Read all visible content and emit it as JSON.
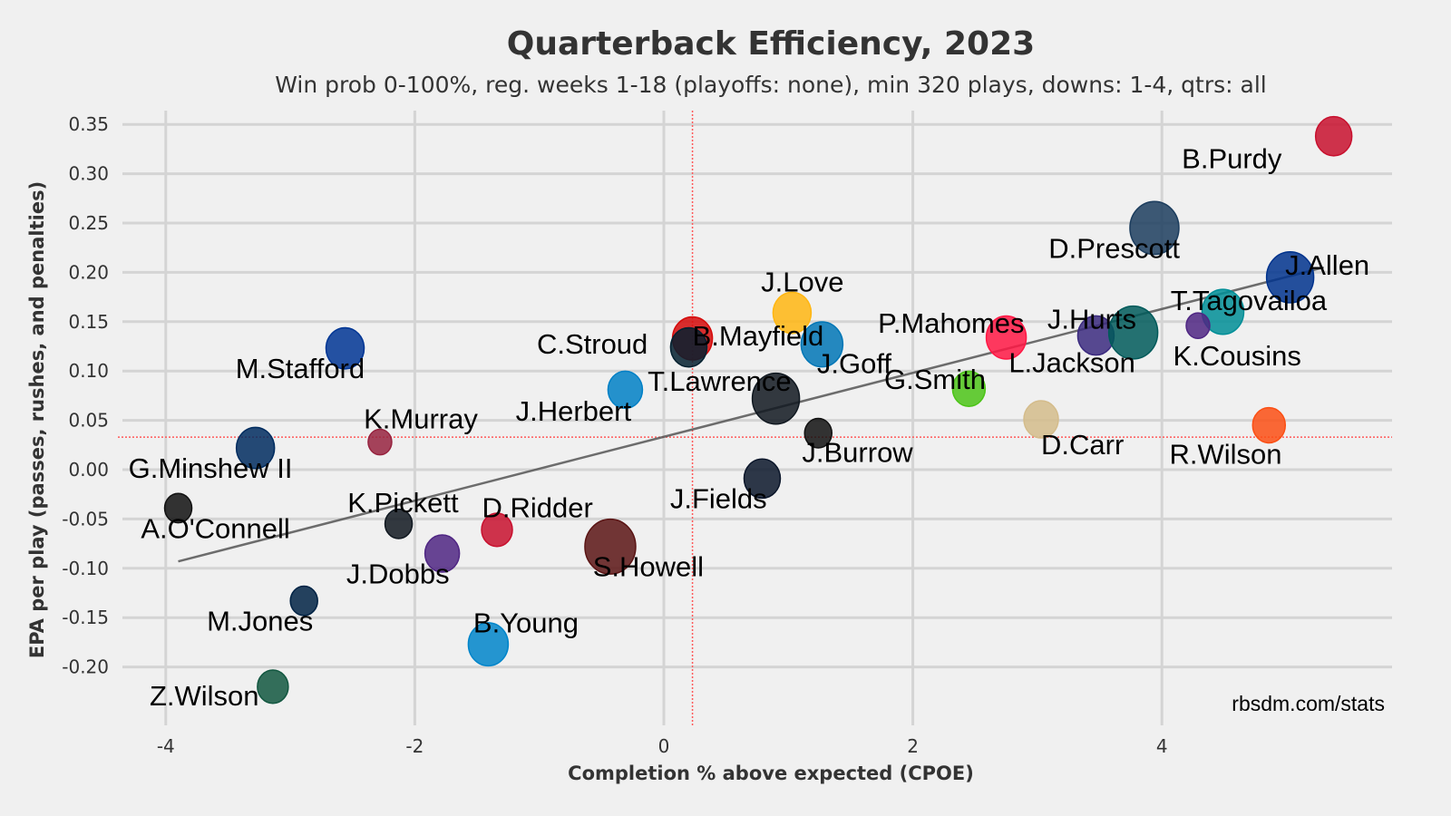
{
  "chart_data": {
    "type": "scatter",
    "title": "Quarterback Efficiency, 2023",
    "subtitle": "Win prob 0-100%, reg. weeks 1-18 (playoffs: none), min 320 plays, downs: 1-4, qtrs: all",
    "xlabel": "Completion % above expected (CPOE)",
    "ylabel": "EPA per play (passes, rushes, and penalties)",
    "credit": "rbsdm.com/stats",
    "xlim": [
      -4.45,
      5.8
    ],
    "ylim": [
      -0.245,
      0.365
    ],
    "xticks": [
      -4,
      -2,
      0,
      2,
      4
    ],
    "xtick_labels": [
      "-4",
      "-2",
      "0",
      "2",
      "4"
    ],
    "yticks": [
      0.35,
      0.3,
      0.25,
      0.2,
      0.15,
      0.1,
      0.05,
      0.0,
      -0.05,
      -0.1,
      -0.15,
      -0.2
    ],
    "ytick_labels": [
      "0.35",
      "0.30",
      "0.25",
      "0.20",
      "0.15",
      "0.10",
      "0.05",
      "0.00",
      "-0.05",
      "-0.10",
      "-0.15",
      "-0.20"
    ],
    "grid": true,
    "mean_lines": {
      "cpoe": 0.23,
      "epa": 0.033,
      "color": "#ff5a5a"
    },
    "trend_line": {
      "x": [
        -3.9,
        5.3
      ],
      "y": [
        -0.093,
        0.205
      ],
      "color": "#555555"
    },
    "points": [
      {
        "name": "B.Purdy",
        "cpoe": 5.38,
        "epa": 0.338,
        "size": 1.0,
        "color": "#c8102e",
        "label_dx": -1.22,
        "label_dy": -0.023
      },
      {
        "name": "D.Prescott",
        "cpoe": 3.94,
        "epa": 0.245,
        "size": 1.35,
        "color": "#1c3d5e",
        "label_dx": -0.85,
        "label_dy": -0.021
      },
      {
        "name": "J.Allen",
        "cpoe": 5.03,
        "epa": 0.195,
        "size": 1.3,
        "color": "#00338d",
        "label_dx": -0.04,
        "label_dy": 0.012
      },
      {
        "name": "T.Tagovailoa",
        "cpoe": 4.49,
        "epa": 0.16,
        "size": 1.15,
        "color": "#008e97",
        "label_dx": -0.42,
        "label_dy": 0.011
      },
      {
        "name": "K.Cousins",
        "cpoe": 4.29,
        "epa": 0.146,
        "size": 0.65,
        "color": "#4f2683",
        "label_dx": -0.2,
        "label_dy": -0.031
      },
      {
        "name": "J.Hurts",
        "cpoe": 3.47,
        "epa": 0.136,
        "size": 1.0,
        "color": "#3b2a7f",
        "label_dx": -0.39,
        "label_dy": 0.016
      },
      {
        "name": "L.Jackson",
        "cpoe": 3.77,
        "epa": 0.139,
        "size": 1.35,
        "color": "#005a5a",
        "label_dx": -1.0,
        "label_dy": -0.031
      },
      {
        "name": "P.Mahomes",
        "cpoe": 2.75,
        "epa": 0.134,
        "size": 1.1,
        "color": "#ff1744",
        "label_dx": -1.03,
        "label_dy": 0.014
      },
      {
        "name": "G.Smith",
        "cpoe": 2.45,
        "epa": 0.082,
        "size": 0.9,
        "color": "#4cc417",
        "label_dx": -0.68,
        "label_dy": 0.009
      },
      {
        "name": "D.Carr",
        "cpoe": 3.03,
        "epa": 0.051,
        "size": 0.95,
        "color": "#d4bc8b",
        "label_dx": 0.0,
        "label_dy": -0.026
      },
      {
        "name": "R.Wilson",
        "cpoe": 4.86,
        "epa": 0.045,
        "size": 0.9,
        "color": "#fb4f14",
        "label_dx": -0.8,
        "label_dy": -0.03
      },
      {
        "name": "J.Love",
        "cpoe": 1.03,
        "epa": 0.159,
        "size": 1.05,
        "color": "#ffb612",
        "label_dx": -0.25,
        "label_dy": 0.031
      },
      {
        "name": "J.Goff",
        "cpoe": 1.27,
        "epa": 0.127,
        "size": 1.15,
        "color": "#0076b6",
        "label_dx": -0.04,
        "label_dy": -0.02
      },
      {
        "name": "B.Mayfield",
        "cpoe": 0.23,
        "epa": 0.133,
        "size": 1.1,
        "color": "#d50a0a",
        "label_dx": 0.0,
        "label_dy": 0.002
      },
      {
        "name": "C.Stroud",
        "cpoe": 0.2,
        "epa": 0.124,
        "size": 1.0,
        "color": "#03202f",
        "label_dx": -1.22,
        "label_dy": 0.003
      },
      {
        "name": "T.Lawrence",
        "cpoe": 0.9,
        "epa": 0.072,
        "size": 1.3,
        "color": "#101820",
        "label_dx": -1.03,
        "label_dy": 0.017
      },
      {
        "name": "J.Herbert",
        "cpoe": -0.31,
        "epa": 0.081,
        "size": 0.95,
        "color": "#0080c6",
        "label_dx": -0.88,
        "label_dy": -0.022
      },
      {
        "name": "J.Burrow",
        "cpoe": 1.24,
        "epa": 0.037,
        "size": 0.75,
        "color": "#111111",
        "label_dx": -0.13,
        "label_dy": -0.02
      },
      {
        "name": "J.Fields",
        "cpoe": 0.79,
        "epa": -0.009,
        "size": 1.0,
        "color": "#0b162a",
        "label_dx": -0.74,
        "label_dy": -0.021
      },
      {
        "name": "M.Stafford",
        "cpoe": -2.56,
        "epa": 0.123,
        "size": 1.05,
        "color": "#003594",
        "label_dx": -0.88,
        "label_dy": -0.021
      },
      {
        "name": "K.Murray",
        "cpoe": -2.28,
        "epa": 0.028,
        "size": 0.65,
        "color": "#97233f",
        "label_dx": -0.13,
        "label_dy": 0.023
      },
      {
        "name": "G.Minshew II",
        "cpoe": -3.28,
        "epa": 0.022,
        "size": 1.05,
        "color": "#002c5f",
        "label_dx": -1.02,
        "label_dy": -0.021
      },
      {
        "name": "A.O'Connell",
        "cpoe": -3.9,
        "epa": -0.039,
        "size": 0.75,
        "color": "#111111",
        "label_dx": -0.3,
        "label_dy": -0.021
      },
      {
        "name": "K.Pickett",
        "cpoe": -2.13,
        "epa": -0.055,
        "size": 0.75,
        "color": "#101820",
        "label_dx": -0.41,
        "label_dy": 0.021
      },
      {
        "name": "J.Dobbs",
        "cpoe": -1.78,
        "epa": -0.085,
        "size": 0.95,
        "color": "#4f2683",
        "label_dx": -0.77,
        "label_dy": -0.021
      },
      {
        "name": "D.Ridder",
        "cpoe": -1.34,
        "epa": -0.061,
        "size": 0.85,
        "color": "#c8102e",
        "label_dx": -0.12,
        "label_dy": 0.022
      },
      {
        "name": "S.Howell",
        "cpoe": -0.43,
        "epa": -0.078,
        "size": 1.4,
        "color": "#5a1414",
        "label_dx": -0.14,
        "label_dy": -0.021
      },
      {
        "name": "M.Jones",
        "cpoe": -2.89,
        "epa": -0.133,
        "size": 0.75,
        "color": "#002244",
        "label_dx": -0.78,
        "label_dy": -0.021
      },
      {
        "name": "B.Young",
        "cpoe": -1.41,
        "epa": -0.177,
        "size": 1.1,
        "color": "#0085ca",
        "label_dx": -0.12,
        "label_dy": 0.021
      },
      {
        "name": "Z.Wilson",
        "cpoe": -3.14,
        "epa": -0.22,
        "size": 0.85,
        "color": "#125740",
        "label_dx": -0.99,
        "label_dy": -0.01
      }
    ]
  }
}
